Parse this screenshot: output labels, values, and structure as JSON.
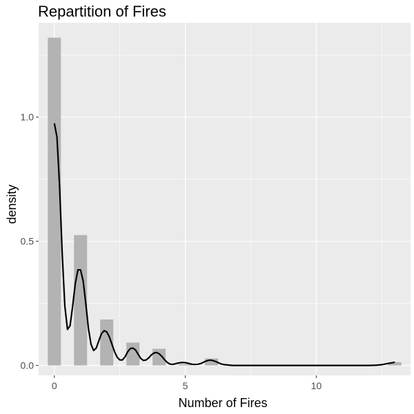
{
  "chart_data": {
    "type": "histogram_density",
    "title": "Repartition of Fires",
    "xlabel": "Number of Fires",
    "ylabel": "density",
    "xlim": [
      -0.6,
      13.6
    ],
    "ylim": [
      -0.04,
      1.38
    ],
    "x_ticks": [
      0,
      5,
      10
    ],
    "y_ticks": [
      0.0,
      0.5,
      1.0
    ],
    "y_tick_labels": [
      "0.0",
      "0.5",
      "1.0"
    ],
    "grid": true,
    "legend": "none",
    "colors": {
      "panel_background": "#ebebeb",
      "grid": "#ffffff",
      "bar_fill": "#b3b3b3",
      "density_line": "#000000"
    },
    "bars": {
      "width": 0.5,
      "x": [
        0,
        1,
        2,
        3,
        4,
        5,
        6,
        13
      ],
      "values": [
        1.32,
        0.525,
        0.185,
        0.092,
        0.067,
        0.005,
        0.028,
        0.013
      ]
    },
    "density": {
      "x": [
        0,
        0.1,
        0.2,
        0.3,
        0.4,
        0.5,
        0.6,
        0.7,
        0.8,
        0.9,
        1.0,
        1.1,
        1.2,
        1.3,
        1.4,
        1.5,
        1.6,
        1.7,
        1.8,
        1.9,
        2.0,
        2.1,
        2.2,
        2.3,
        2.4,
        2.5,
        2.6,
        2.7,
        2.8,
        2.9,
        3.0,
        3.1,
        3.2,
        3.3,
        3.4,
        3.5,
        3.6,
        3.7,
        3.8,
        3.9,
        4.0,
        4.1,
        4.2,
        4.3,
        4.4,
        4.5,
        4.6,
        4.7,
        4.8,
        4.9,
        5.0,
        5.1,
        5.2,
        5.3,
        5.4,
        5.5,
        5.6,
        5.7,
        5.8,
        5.9,
        6.0,
        6.1,
        6.2,
        6.3,
        6.4,
        6.5,
        6.6,
        6.7,
        6.8,
        7.0,
        8.0,
        9.0,
        10.0,
        11.0,
        12.0,
        12.3,
        12.5,
        12.7,
        12.9,
        13.0
      ],
      "y": [
        0.975,
        0.92,
        0.72,
        0.45,
        0.24,
        0.145,
        0.16,
        0.24,
        0.33,
        0.385,
        0.385,
        0.34,
        0.25,
        0.15,
        0.085,
        0.06,
        0.07,
        0.1,
        0.128,
        0.14,
        0.135,
        0.115,
        0.085,
        0.055,
        0.033,
        0.022,
        0.022,
        0.035,
        0.055,
        0.068,
        0.07,
        0.062,
        0.045,
        0.028,
        0.02,
        0.022,
        0.03,
        0.042,
        0.05,
        0.052,
        0.047,
        0.037,
        0.024,
        0.013,
        0.006,
        0.004,
        0.006,
        0.009,
        0.011,
        0.012,
        0.011,
        0.009,
        0.006,
        0.004,
        0.004,
        0.005,
        0.008,
        0.013,
        0.018,
        0.021,
        0.021,
        0.018,
        0.014,
        0.009,
        0.005,
        0.003,
        0.002,
        0.001,
        0.0,
        0.0,
        0.0,
        0.0,
        0.0,
        0.0,
        0.0,
        0.001,
        0.003,
        0.007,
        0.011,
        0.013
      ]
    }
  }
}
